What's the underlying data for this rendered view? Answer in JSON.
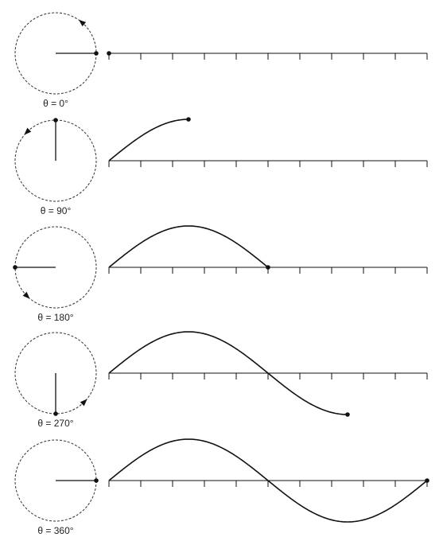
{
  "panels": [
    {
      "label": "θ = 0°"
    },
    {
      "label": "θ = 90°"
    },
    {
      "label": "θ = 180°"
    },
    {
      "label": "θ = 270°"
    },
    {
      "label": "θ = 360°"
    }
  ]
}
